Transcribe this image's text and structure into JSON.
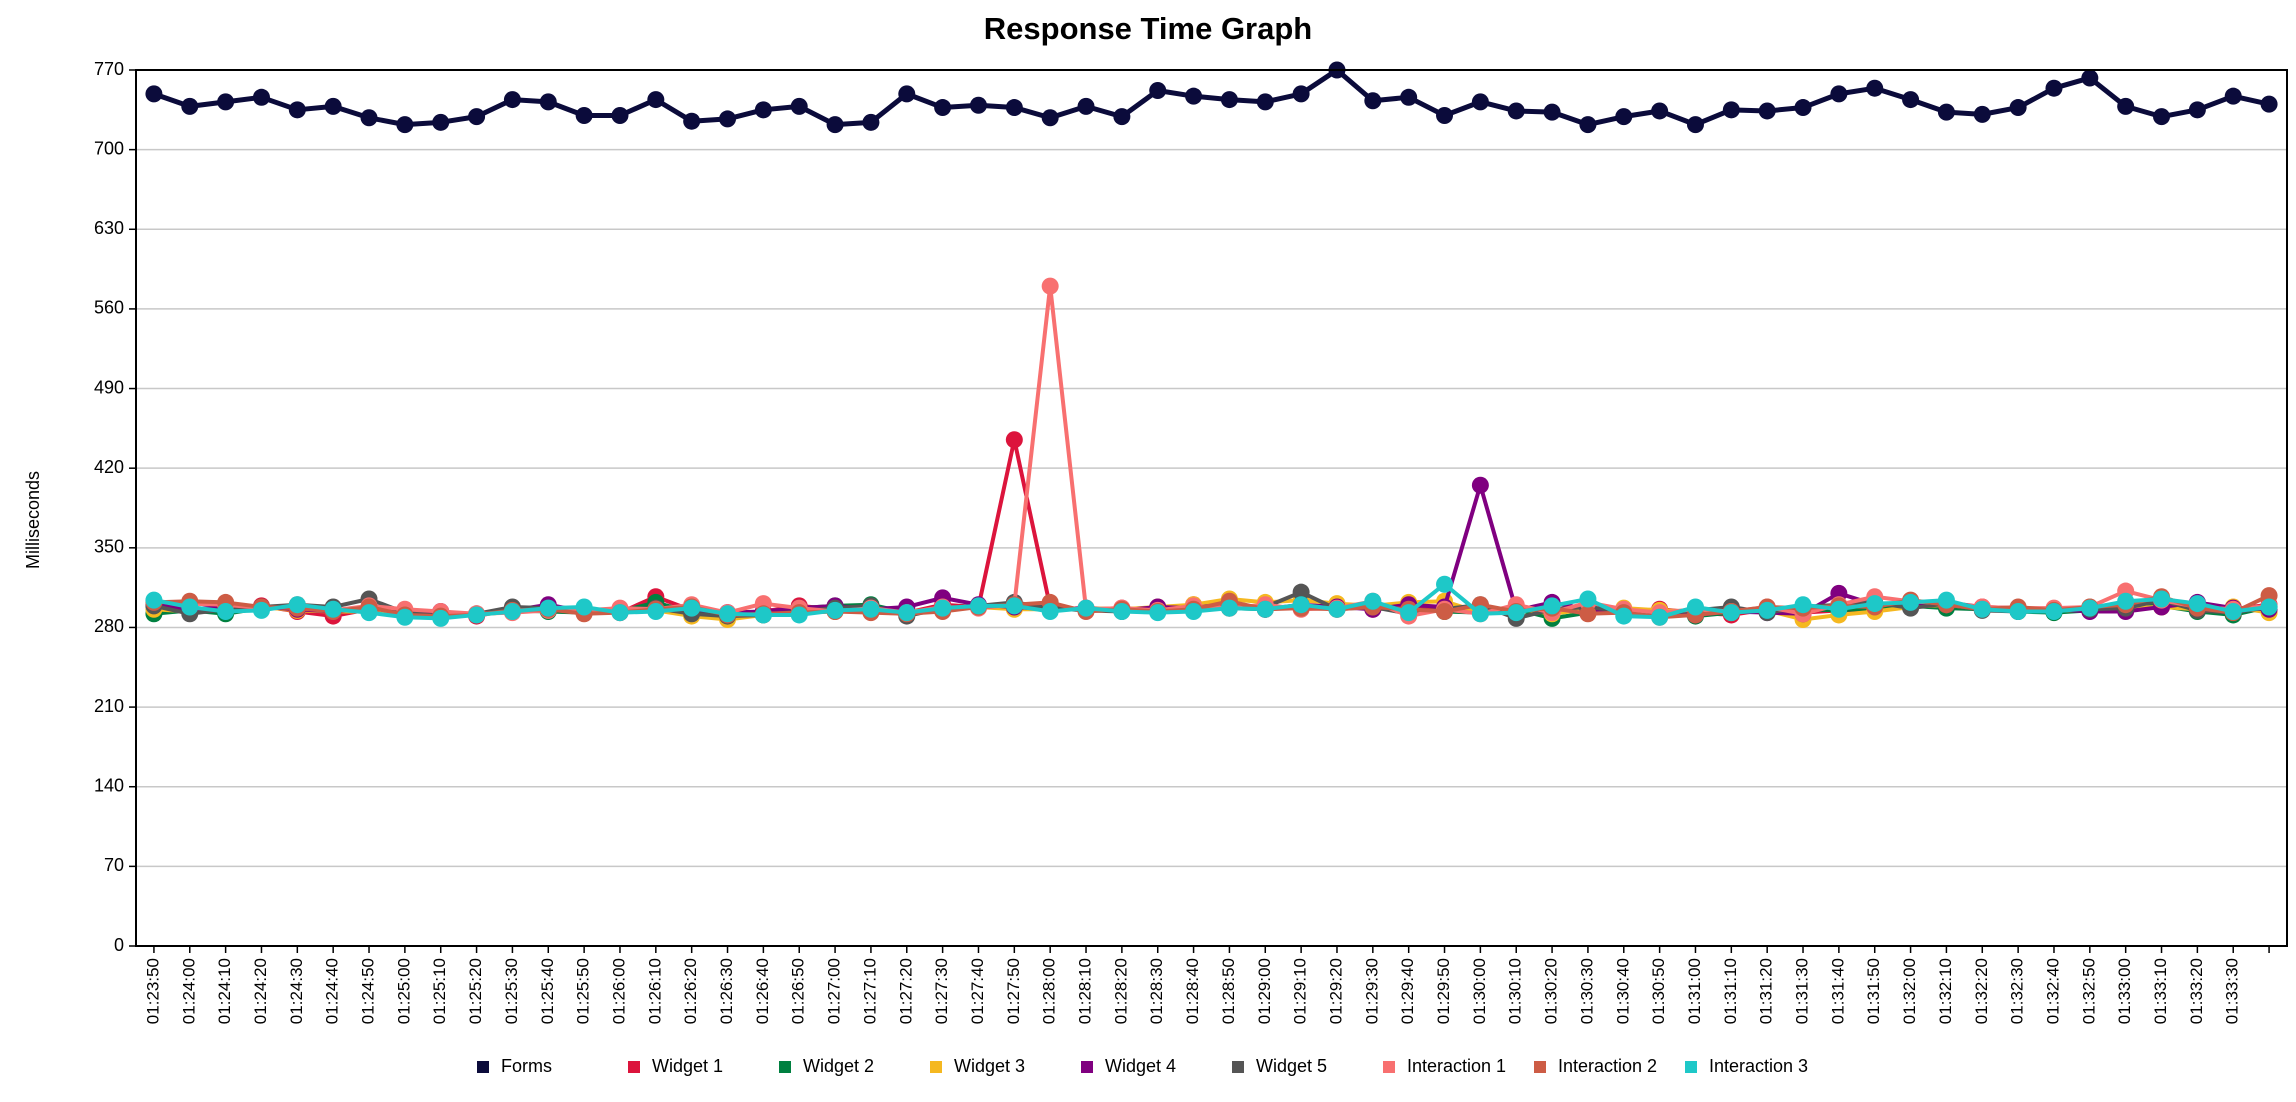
{
  "chart_data": {
    "type": "line",
    "title": "Response Time Graph",
    "y_label": "Milliseconds",
    "categories": [
      "01:23:50",
      "01:24:00",
      "01:24:10",
      "01:24:20",
      "01:24:30",
      "01:24:40",
      "01:24:50",
      "01:25:00",
      "01:25:10",
      "01:25:20",
      "01:25:30",
      "01:25:40",
      "01:25:50",
      "01:26:00",
      "01:26:10",
      "01:26:20",
      "01:26:30",
      "01:26:40",
      "01:26:50",
      "01:27:00",
      "01:27:10",
      "01:27:20",
      "01:27:30",
      "01:27:40",
      "01:27:50",
      "01:28:00",
      "01:28:10",
      "01:28:20",
      "01:28:30",
      "01:28:40",
      "01:28:50",
      "01:29:00",
      "01:29:10",
      "01:29:20",
      "01:29:30",
      "01:29:40",
      "01:29:50",
      "01:30:00",
      "01:30:10",
      "01:30:20",
      "01:30:30",
      "01:30:40",
      "01:30:50",
      "01:31:00",
      "01:31:10",
      "01:31:20",
      "01:31:30",
      "01:31:40",
      "01:31:50",
      "01:32:00",
      "01:32:10",
      "01:32:20",
      "01:32:30",
      "01:32:40",
      "01:32:50",
      "01:33:00",
      "01:33:10",
      "01:33:20",
      "01:33:30",
      null
    ],
    "series": [
      {
        "name": "Forms",
        "color": "#0b0b3b",
        "values": [
          749,
          738,
          742,
          746,
          735,
          738,
          728,
          722,
          724,
          729,
          744,
          742,
          730,
          730,
          744,
          725,
          727,
          735,
          738,
          722,
          724,
          749,
          737,
          739,
          737,
          728,
          738,
          729,
          752,
          747,
          744,
          742,
          749,
          770,
          743,
          746,
          730,
          742,
          734,
          733,
          722,
          729,
          734,
          722,
          735,
          734,
          737,
          749,
          754,
          744,
          733,
          731,
          737,
          754,
          763,
          738,
          729,
          735,
          747,
          740
        ]
      },
      {
        "name": "Widget 1",
        "color": "#dc143c",
        "values": [
          298,
          297,
          295,
          299,
          294,
          290,
          296,
          293,
          292,
          290,
          296,
          295,
          294,
          293,
          307,
          295,
          292,
          294,
          299,
          296,
          295,
          293,
          300,
          298,
          445,
          298,
          296,
          297,
          295,
          300,
          297,
          298,
          297,
          299,
          296,
          298,
          295,
          297,
          294,
          295,
          298,
          294,
          296,
          293,
          291,
          296,
          293,
          295,
          296,
          300,
          302,
          298,
          297,
          296,
          296,
          297,
          302,
          300,
          296,
          300
        ]
      },
      {
        "name": "Widget 2",
        "color": "#008040",
        "values": [
          292,
          295,
          292,
          297,
          299,
          296,
          294,
          292,
          290,
          291,
          295,
          294,
          293,
          294,
          302,
          293,
          291,
          293,
          297,
          299,
          300,
          293,
          296,
          298,
          301,
          297,
          296,
          295,
          294,
          296,
          297,
          296,
          298,
          299,
          297,
          296,
          294,
          293,
          296,
          288,
          293,
          295,
          292,
          290,
          293,
          297,
          296,
          295,
          297,
          299,
          297,
          296,
          294,
          293,
          295,
          297,
          299,
          294,
          291,
          298
        ]
      },
      {
        "name": "Widget 3",
        "color": "#f5b820",
        "values": [
          296,
          294,
          296,
          298,
          295,
          294,
          294,
          293,
          290,
          291,
          294,
          297,
          293,
          295,
          295,
          290,
          287,
          291,
          293,
          294,
          295,
          294,
          296,
          298,
          296,
          296,
          297,
          296,
          298,
          300,
          305,
          302,
          304,
          301,
          299,
          302,
          303,
          293,
          297,
          292,
          296,
          297,
          295,
          294,
          293,
          295,
          287,
          291,
          294,
          298,
          300,
          296,
          296,
          295,
          295,
          297,
          298,
          296,
          298,
          293
        ]
      },
      {
        "name": "Widget 4",
        "color": "#800080",
        "values": [
          300,
          296,
          298,
          298,
          296,
          294,
          297,
          293,
          294,
          291,
          295,
          300,
          294,
          295,
          296,
          296,
          293,
          294,
          297,
          299,
          296,
          298,
          306,
          300,
          298,
          296,
          297,
          295,
          298,
          297,
          298,
          296,
          300,
          298,
          296,
          300,
          298,
          405,
          295,
          302,
          296,
          294,
          292,
          291,
          294,
          293,
          292,
          310,
          300,
          302,
          300,
          296,
          295,
          296,
          294,
          294,
          298,
          302,
          297,
          296
        ]
      },
      {
        "name": "Widget 5",
        "color": "#555555",
        "values": [
          299,
          292,
          296,
          298,
          300,
          298,
          305,
          293,
          290,
          292,
          298,
          297,
          294,
          296,
          297,
          292,
          290,
          291,
          294,
          297,
          299,
          290,
          297,
          299,
          302,
          297,
          295,
          294,
          294,
          298,
          300,
          298,
          311,
          296,
          298,
          292,
          296,
          300,
          288,
          296,
          298,
          294,
          292,
          295,
          298,
          293,
          298,
          300,
          302,
          297,
          301,
          295,
          294,
          296,
          296,
          297,
          304,
          295,
          293,
          298
        ]
      },
      {
        "name": "Interaction 1",
        "color": "#f87070",
        "values": [
          303,
          301,
          300,
          297,
          298,
          295,
          299,
          296,
          294,
          292,
          293,
          295,
          295,
          297,
          296,
          300,
          293,
          301,
          297,
          294,
          297,
          293,
          298,
          297,
          300,
          580,
          296,
          297,
          295,
          299,
          297,
          300,
          296,
          297,
          303,
          290,
          296,
          292,
          300,
          293,
          302,
          296,
          293,
          296,
          294,
          298,
          292,
          300,
          307,
          303,
          301,
          298,
          297,
          297,
          298,
          312,
          304,
          298,
          296,
          299
        ]
      },
      {
        "name": "Interaction 2",
        "color": "#cd5c45",
        "values": [
          302,
          303,
          302,
          298,
          297,
          294,
          298,
          291,
          290,
          291,
          295,
          296,
          292,
          293,
          296,
          298,
          291,
          292,
          293,
          294,
          293,
          292,
          294,
          298,
          300,
          302,
          294,
          296,
          294,
          296,
          303,
          296,
          297,
          296,
          298,
          296,
          294,
          300,
          294,
          297,
          292,
          293,
          289,
          291,
          294,
          298,
          297,
          299,
          298,
          304,
          300,
          296,
          298,
          295,
          298,
          300,
          307,
          297,
          293,
          308
        ]
      },
      {
        "name": "Interaction 3",
        "color": "#1ec8c8",
        "values": [
          304,
          298,
          294,
          295,
          300,
          296,
          293,
          289,
          288,
          291,
          294,
          297,
          298,
          293,
          294,
          297,
          292,
          291,
          291,
          295,
          296,
          293,
          297,
          299,
          299,
          294,
          297,
          294,
          293,
          294,
          297,
          296,
          300,
          296,
          303,
          293,
          318,
          292,
          293,
          299,
          305,
          290,
          289,
          298,
          293,
          295,
          300,
          296,
          301,
          302,
          304,
          296,
          294,
          294,
          297,
          303,
          305,
          301,
          294,
          298
        ]
      }
    ],
    "ylim": [
      0,
      770
    ],
    "yticks": [
      0,
      70,
      140,
      210,
      280,
      350,
      420,
      490,
      560,
      630,
      700,
      770
    ],
    "grid": true,
    "legend": "bottom"
  }
}
